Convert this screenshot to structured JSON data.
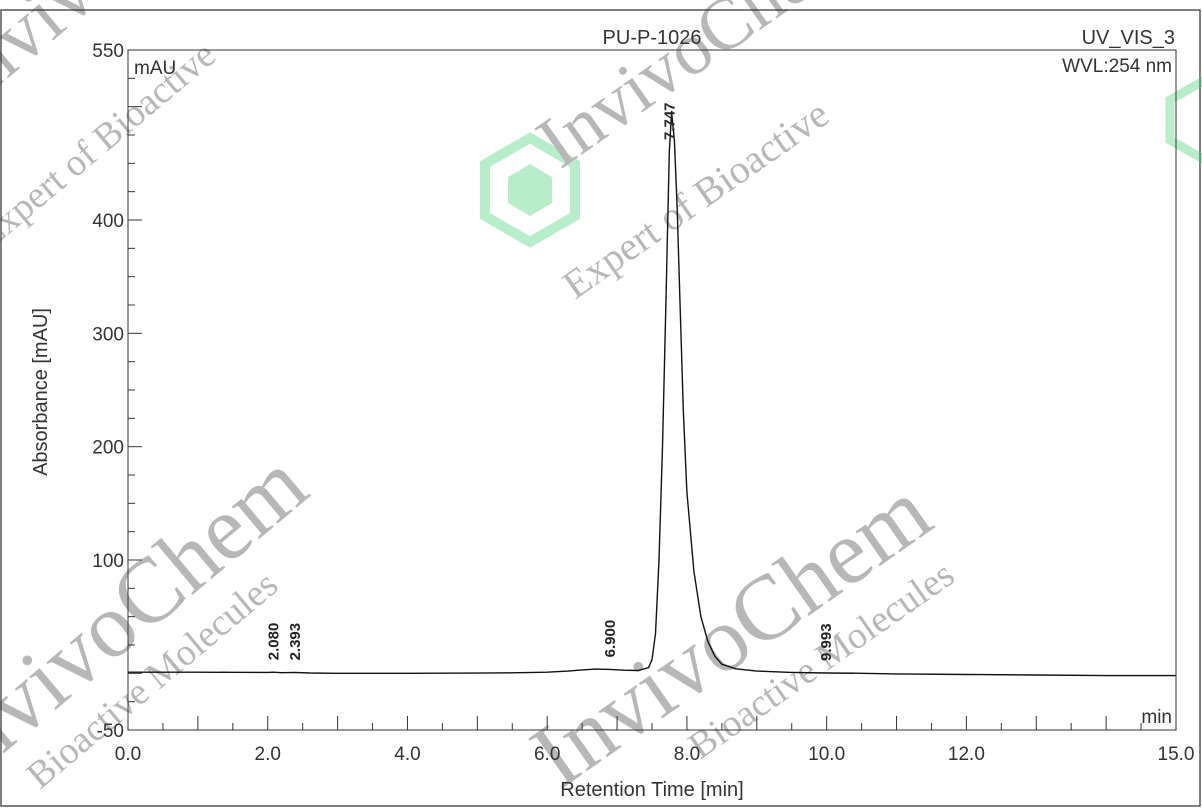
{
  "chart_data": {
    "type": "line",
    "title": "PU-P-1026",
    "channel": "UV_VIS_3",
    "wavelength": "WVL:254 nm",
    "unit_label": "mAU",
    "x_unit_label": "min",
    "xlabel": "Retention Time [min]",
    "ylabel": "Absorbance [mAU]",
    "xlim": [
      0,
      15
    ],
    "ylim": [
      -50,
      550
    ],
    "x_ticks": [
      "0.0",
      "2.0",
      "4.0",
      "6.0",
      "8.0",
      "10.0",
      "12.0",
      "15.0"
    ],
    "x_tick_values": [
      0,
      2,
      4,
      6,
      8,
      10,
      12,
      15
    ],
    "y_ticks": [
      "-50",
      "100",
      "200",
      "300",
      "400",
      "550"
    ],
    "y_tick_values": [
      -50,
      100,
      200,
      300,
      400,
      550
    ],
    "grid": false,
    "peaks": [
      {
        "label": "2.080",
        "rt": 2.08
      },
      {
        "label": "2.393",
        "rt": 2.393
      },
      {
        "label": "6.900",
        "rt": 6.9
      },
      {
        "label": "7.747",
        "rt": 7.747
      },
      {
        "label": "9.993",
        "rt": 9.993
      }
    ],
    "series": [
      {
        "x": [
          0,
          0.5,
          1.0,
          1.5,
          2.0,
          2.08,
          2.2,
          2.393,
          2.6,
          3.0,
          4.0,
          5.0,
          5.5,
          6.0,
          6.3,
          6.5,
          6.7,
          6.9,
          7.1,
          7.3,
          7.45,
          7.5,
          7.55,
          7.6,
          7.65,
          7.7,
          7.747,
          7.78,
          7.82,
          7.86,
          7.9,
          7.95,
          8.0,
          8.1,
          8.2,
          8.3,
          8.4,
          8.5,
          8.7,
          9.0,
          9.5,
          9.993,
          10.5,
          11.0,
          12.0,
          13.0,
          14.0,
          15.0
        ],
        "y": [
          1.0,
          1.0,
          1.0,
          0.9,
          0.8,
          1.0,
          0.6,
          0.8,
          0.3,
          0.0,
          0.0,
          0.2,
          0.5,
          1.0,
          2.0,
          3.0,
          3.7,
          3.5,
          2.8,
          2.5,
          5.0,
          12.0,
          35.0,
          100.0,
          200.0,
          330.0,
          460.0,
          495.0,
          470.0,
          410.0,
          330.0,
          230.0,
          160.0,
          90.0,
          50.0,
          28.0,
          15.0,
          8.0,
          4.0,
          2.0,
          0.8,
          0.3,
          0.0,
          -0.5,
          -1.0,
          -1.5,
          -2.0,
          -2.0
        ]
      }
    ],
    "watermarks": [
      "InvivoChem",
      "Expert of Bioactive",
      "Bioactive Molecules"
    ]
  }
}
